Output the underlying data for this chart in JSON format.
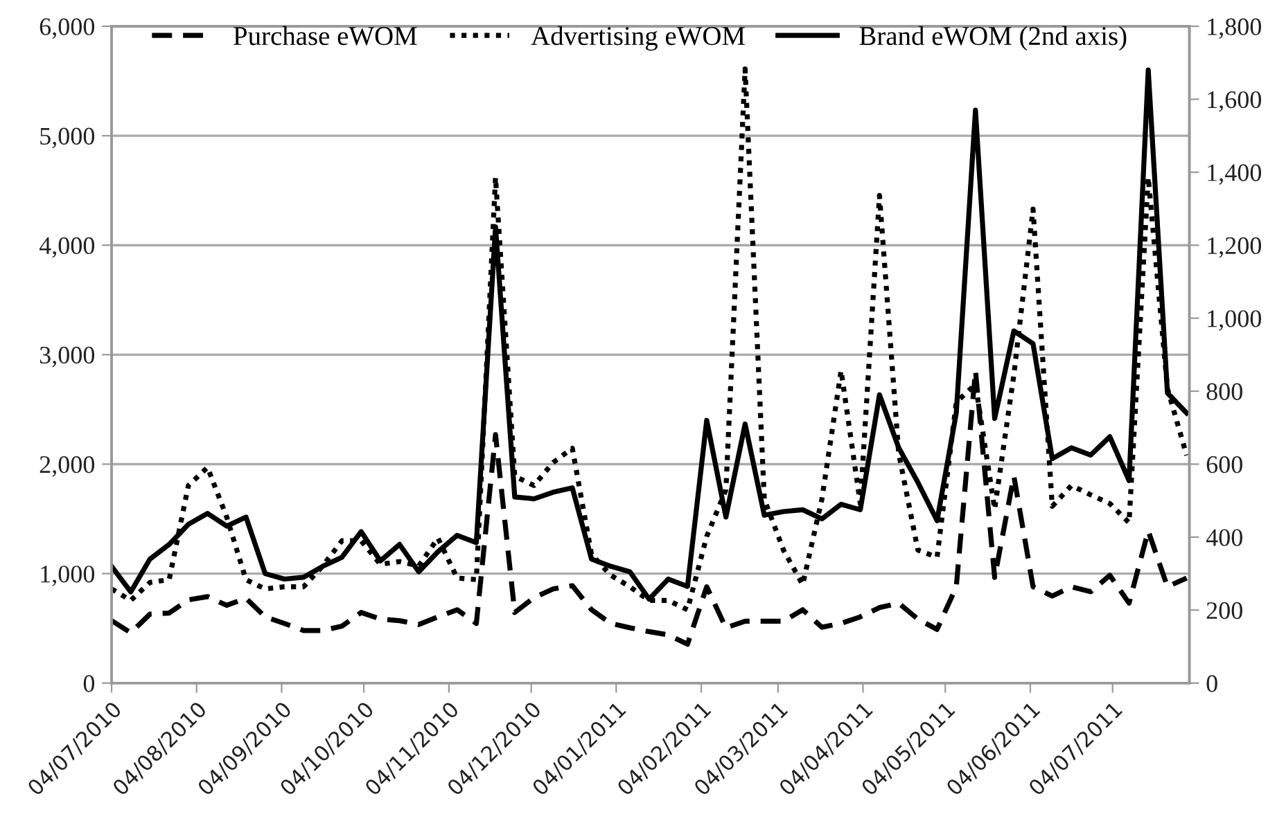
{
  "chart_data": {
    "type": "line",
    "x": [
      "2010-07-04",
      "2010-07-11",
      "2010-07-18",
      "2010-07-25",
      "2010-08-01",
      "2010-08-08",
      "2010-08-15",
      "2010-08-22",
      "2010-08-29",
      "2010-09-05",
      "2010-09-12",
      "2010-09-19",
      "2010-09-26",
      "2010-10-03",
      "2010-10-10",
      "2010-10-17",
      "2010-10-24",
      "2010-10-31",
      "2010-11-07",
      "2010-11-14",
      "2010-11-21",
      "2010-11-28",
      "2010-12-05",
      "2010-12-12",
      "2010-12-19",
      "2010-12-26",
      "2011-01-02",
      "2011-01-09",
      "2011-01-16",
      "2011-01-23",
      "2011-01-30",
      "2011-02-06",
      "2011-02-13",
      "2011-02-20",
      "2011-02-27",
      "2011-03-06",
      "2011-03-13",
      "2011-03-20",
      "2011-03-27",
      "2011-04-03",
      "2011-04-10",
      "2011-04-17",
      "2011-04-24",
      "2011-05-01",
      "2011-05-08",
      "2011-05-15",
      "2011-05-22",
      "2011-05-29",
      "2011-06-05",
      "2011-06-12",
      "2011-06-19",
      "2011-06-26",
      "2011-07-03",
      "2011-07-10",
      "2011-07-17",
      "2011-07-24",
      "2011-07-31"
    ],
    "series": [
      {
        "name": "Purchase eWOM",
        "color": "#000000",
        "line_style": "dashed",
        "values": [
          570,
          460,
          630,
          640,
          760,
          790,
          710,
          775,
          605,
          545,
          480,
          480,
          520,
          645,
          585,
          570,
          535,
          605,
          670,
          545,
          2270,
          645,
          780,
          860,
          890,
          670,
          545,
          505,
          470,
          440,
          355,
          880,
          505,
          565,
          565,
          565,
          670,
          510,
          545,
          605,
          690,
          730,
          585,
          490,
          880,
          2855,
          965,
          1890,
          880,
          795,
          880,
          835,
          985,
          730,
          1390,
          880,
          960
        ]
      },
      {
        "name": "Advertising eWOM",
        "color": "#000000",
        "line_style": "dotted",
        "values": [
          860,
          755,
          920,
          945,
          1805,
          1970,
          1515,
          945,
          860,
          880,
          880,
          1070,
          1300,
          1300,
          1085,
          1110,
          1070,
          1325,
          960,
          945,
          4620,
          1890,
          1805,
          2015,
          2145,
          1175,
          985,
          880,
          755,
          755,
          670,
          1340,
          1765,
          5610,
          1680,
          1215,
          900,
          1680,
          2855,
          1640,
          4455,
          2100,
          1215,
          1150,
          2565,
          2730,
          1590,
          2815,
          4330,
          1615,
          1805,
          1720,
          1640,
          1465,
          4620,
          2690,
          2080
        ]
      },
      {
        "name": "Brand eWOM (2nd axis)",
        "color": "#000000",
        "line_style": "solid",
        "axis": "y2",
        "values": [
          320,
          250,
          340,
          380,
          435,
          465,
          430,
          455,
          300,
          285,
          290,
          320,
          345,
          415,
          335,
          380,
          305,
          360,
          405,
          385,
          1250,
          510,
          505,
          523,
          535,
          340,
          320,
          305,
          230,
          285,
          265,
          720,
          455,
          710,
          460,
          470,
          475,
          450,
          490,
          475,
          790,
          645,
          550,
          445,
          740,
          1570,
          725,
          965,
          930,
          615,
          645,
          625,
          675,
          555,
          1680,
          795,
          740
        ]
      }
    ],
    "xlim": [
      "2010-07-04",
      "2011-08-01"
    ],
    "xticks": [
      {
        "value": "2010-07-04",
        "label": "04/07/2010"
      },
      {
        "value": "2010-08-04",
        "label": "04/08/2010"
      },
      {
        "value": "2010-09-04",
        "label": "04/09/2010"
      },
      {
        "value": "2010-10-04",
        "label": "04/10/2010"
      },
      {
        "value": "2010-11-04",
        "label": "04/11/2010"
      },
      {
        "value": "2010-12-04",
        "label": "04/12/2010"
      },
      {
        "value": "2011-01-04",
        "label": "04/01/2011"
      },
      {
        "value": "2011-02-04",
        "label": "04/02/2011"
      },
      {
        "value": "2011-03-04",
        "label": "04/03/2011"
      },
      {
        "value": "2011-04-04",
        "label": "04/04/2011"
      },
      {
        "value": "2011-05-04",
        "label": "04/05/2011"
      },
      {
        "value": "2011-06-04",
        "label": "04/06/2011"
      },
      {
        "value": "2011-07-04",
        "label": "04/07/2011"
      }
    ],
    "ylim": [
      0,
      6000
    ],
    "yticks": [
      0,
      {
        "value": 1000,
        "label": "1,000"
      },
      {
        "value": 2000,
        "label": "2,000"
      },
      {
        "value": 3000,
        "label": "3,000"
      },
      {
        "value": 4000,
        "label": "4,000"
      },
      {
        "value": 5000,
        "label": "5,000"
      },
      {
        "value": 6000,
        "label": "6,000"
      }
    ],
    "y2lim": [
      0,
      1800
    ],
    "y2ticks": [
      0,
      200,
      400,
      600,
      800,
      {
        "value": 1000,
        "label": "1,000"
      },
      {
        "value": 1200,
        "label": "1,200"
      },
      {
        "value": 1400,
        "label": "1,400"
      },
      {
        "value": 1600,
        "label": "1,600"
      },
      {
        "value": 1800,
        "label": "1,800"
      }
    ],
    "grid": "y",
    "legend": "top",
    "marker": "none"
  }
}
